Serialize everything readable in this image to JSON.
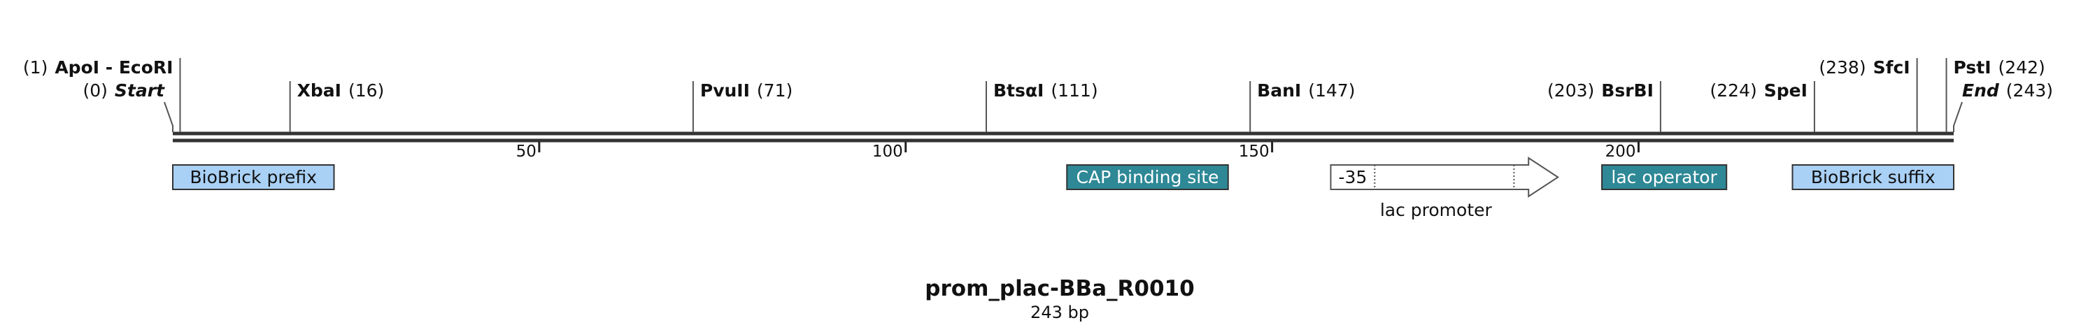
{
  "sequence": {
    "name": "prom_plac-BBa_R0010",
    "length_label": "243 bp",
    "length_bp": 243
  },
  "ruler": {
    "ticks": [
      {
        "bp": 50,
        "label": "50"
      },
      {
        "bp": 100,
        "label": "100"
      },
      {
        "bp": 150,
        "label": "150"
      },
      {
        "bp": 200,
        "label": "200"
      }
    ]
  },
  "sites": [
    {
      "id": "apoi-ecori",
      "name": "ApoI - EcoRI",
      "pos_label": "(1)",
      "bp": 1,
      "side": "left",
      "row": 0,
      "italic": false
    },
    {
      "id": "start",
      "name": "Start",
      "pos_label": "(0)",
      "bp": 0,
      "side": "left",
      "row": 1,
      "italic": true
    },
    {
      "id": "xbai",
      "name": "XbaI",
      "pos_label": "(16)",
      "bp": 16,
      "side": "right",
      "row": 1,
      "italic": false
    },
    {
      "id": "pvuii",
      "name": "PvuII",
      "pos_label": "(71)",
      "bp": 71,
      "side": "right",
      "row": 1,
      "italic": false
    },
    {
      "id": "btsai",
      "name": "BtsαI",
      "pos_label": "(111)",
      "bp": 111,
      "side": "right",
      "row": 1,
      "italic": false
    },
    {
      "id": "bani",
      "name": "BanI",
      "pos_label": "(147)",
      "bp": 147,
      "side": "right",
      "row": 1,
      "italic": false
    },
    {
      "id": "bsrbi",
      "name": "BsrBI",
      "pos_label": "(203)",
      "bp": 203,
      "side": "left",
      "row": 1,
      "italic": false
    },
    {
      "id": "spei",
      "name": "SpeI",
      "pos_label": "(224)",
      "bp": 224,
      "side": "left",
      "row": 1,
      "italic": false
    },
    {
      "id": "sfci",
      "name": "SfcI",
      "pos_label": "(238)",
      "bp": 238,
      "side": "left",
      "row": 0,
      "italic": false
    },
    {
      "id": "psti",
      "name": "PstI",
      "pos_label": "(242)",
      "bp": 242,
      "side": "right",
      "row": 0,
      "italic": false
    },
    {
      "id": "end",
      "name": "End",
      "pos_label": "(243)",
      "bp": 243,
      "side": "right",
      "row": 1,
      "italic": true
    }
  ],
  "features": [
    {
      "id": "biobrick-prefix",
      "label": "BioBrick prefix",
      "start": 0,
      "end": 22,
      "kind": "box",
      "fill": "#a9d0f5",
      "text_color": "#111111"
    },
    {
      "id": "cap-binding-site",
      "label": "CAP binding site",
      "start": 122,
      "end": 144,
      "kind": "box",
      "fill": "#2e8896",
      "text_color": "#ffffff"
    },
    {
      "id": "lac-promoter",
      "label": "lac promoter",
      "minus35_label": "-35",
      "start": 158,
      "end": 189,
      "minus35_end": 164,
      "dotted_bp": 183,
      "kind": "arrow",
      "fill": "#ffffff",
      "text_color": "#111111"
    },
    {
      "id": "lac-operator",
      "label": "lac operator",
      "start": 195,
      "end": 212,
      "kind": "box",
      "fill": "#2e8896",
      "text_color": "#ffffff"
    },
    {
      "id": "biobrick-suffix",
      "label": "BioBrick suffix",
      "start": 221,
      "end": 243,
      "kind": "box",
      "fill": "#a9d0f5",
      "text_color": "#111111"
    }
  ],
  "colors": {
    "backbone": "#333333",
    "leader": "#555555"
  }
}
